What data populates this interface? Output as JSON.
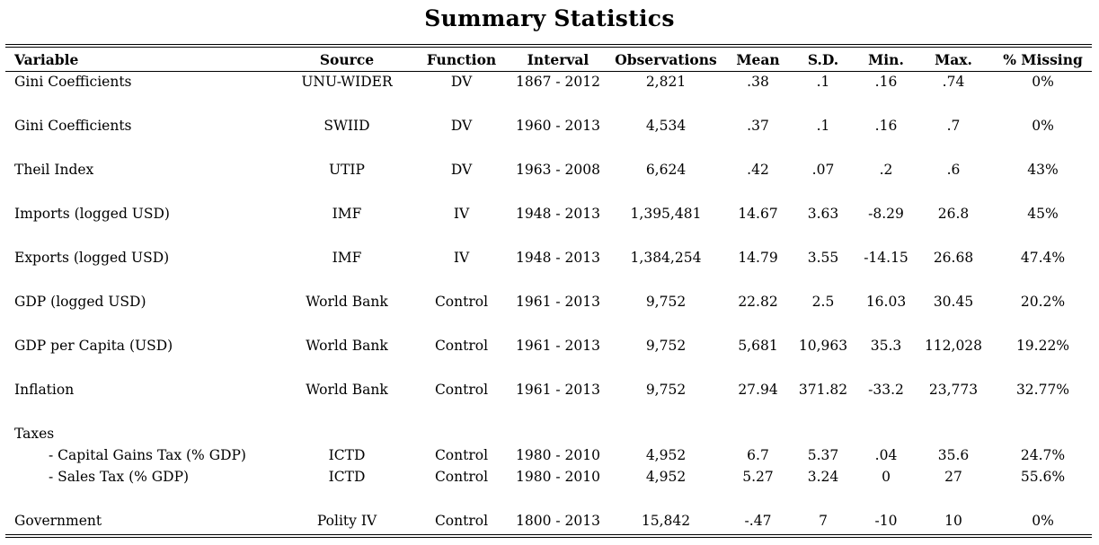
{
  "title": "Summary Statistics",
  "columns": [
    "Variable",
    "Source",
    "Function",
    "Interval",
    "Observations",
    "Mean",
    "S.D.",
    "Min.",
    "Max.",
    "% Missing"
  ],
  "rows": [
    {
      "variable": "Gini Coefficients",
      "source": "UNU-WIDER",
      "function": "DV",
      "interval": "1867 - 2012",
      "observations": "2,821",
      "mean": ".38",
      "sd": ".1",
      "min": ".16",
      "max": ".74",
      "missing": "0%"
    },
    {
      "variable": "Gini Coefficients",
      "source": "SWIID",
      "function": "DV",
      "interval": "1960 - 2013",
      "observations": "4,534",
      "mean": ".37",
      "sd": ".1",
      "min": ".16",
      "max": ".7",
      "missing": "0%"
    },
    {
      "variable": "Theil Index",
      "source": "UTIP",
      "function": "DV",
      "interval": "1963 - 2008",
      "observations": "6,624",
      "mean": ".42",
      "sd": ".07",
      "min": ".2",
      "max": ".6",
      "missing": "43%"
    },
    {
      "variable": "Imports (logged USD)",
      "source": "IMF",
      "function": "IV",
      "interval": "1948 - 2013",
      "observations": "1,395,481",
      "mean": "14.67",
      "sd": "3.63",
      "min": "-8.29",
      "max": "26.8",
      "missing": "45%"
    },
    {
      "variable": "Exports (logged USD)",
      "source": "IMF",
      "function": "IV",
      "interval": "1948 - 2013",
      "observations": "1,384,254",
      "mean": "14.79",
      "sd": "3.55",
      "min": "-14.15",
      "max": "26.68",
      "missing": "47.4%"
    },
    {
      "variable": "GDP (logged USD)",
      "source": "World Bank",
      "function": "Control",
      "interval": "1961 - 2013",
      "observations": "9,752",
      "mean": "22.82",
      "sd": "2.5",
      "min": "16.03",
      "max": "30.45",
      "missing": "20.2%"
    },
    {
      "variable": "GDP per Capita (USD)",
      "source": "World Bank",
      "function": "Control",
      "interval": "1961 - 2013",
      "observations": "9,752",
      "mean": "5,681",
      "sd": "10,963",
      "min": "35.3",
      "max": "112,028",
      "missing": "19.22%"
    },
    {
      "variable": "Inflation",
      "source": "World Bank",
      "function": "Control",
      "interval": "1961 - 2013",
      "observations": "9,752",
      "mean": "27.94",
      "sd": "371.82",
      "min": "-33.2",
      "max": "23,773",
      "missing": "32.77%"
    }
  ],
  "taxes": {
    "label": "Taxes",
    "rows": [
      {
        "variable": "- Capital Gains Tax (% GDP)",
        "source": "ICTD",
        "function": "Control",
        "interval": "1980 - 2010",
        "observations": "4,952",
        "mean": "6.7",
        "sd": "5.37",
        "min": ".04",
        "max": "35.6",
        "missing": "24.7%"
      },
      {
        "variable": "- Sales Tax (% GDP)",
        "source": "ICTD",
        "function": "Control",
        "interval": "1980 - 2010",
        "observations": "4,952",
        "mean": "5.27",
        "sd": "3.24",
        "min": "0",
        "max": "27",
        "missing": "55.6%"
      }
    ]
  },
  "last_row": {
    "variable": "Government",
    "source": "Polity IV",
    "function": "Control",
    "interval": "1800 - 2013",
    "observations": "15,842",
    "mean": "-.47",
    "sd": "7",
    "min": "-10",
    "max": "10",
    "missing": "0%"
  }
}
